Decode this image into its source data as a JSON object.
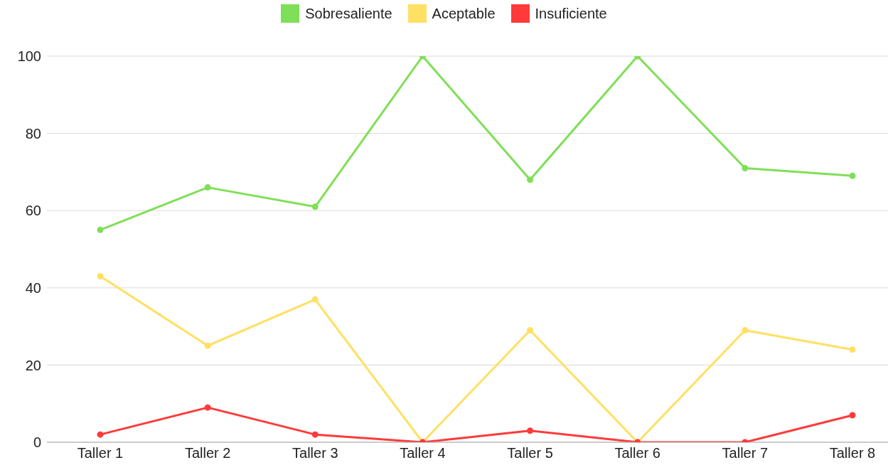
{
  "chart_data": {
    "type": "line",
    "categories": [
      "Taller 1",
      "Taller 2",
      "Taller 3",
      "Taller 4",
      "Taller 5",
      "Taller 6",
      "Taller 7",
      "Taller 8"
    ],
    "series": [
      {
        "name": "Sobresaliente",
        "color": "#80df58",
        "values": [
          55,
          66,
          61,
          100,
          68,
          100,
          71,
          69
        ]
      },
      {
        "name": "Aceptable",
        "color": "#ffe063",
        "values": [
          43,
          25,
          37,
          0,
          29,
          0,
          29,
          24
        ]
      },
      {
        "name": "Insuficiente",
        "color": "#ff3a3a",
        "values": [
          2,
          9,
          2,
          0,
          3,
          0,
          0,
          7
        ]
      }
    ],
    "ylim": [
      0,
      100
    ],
    "yticks": [
      0,
      20,
      40,
      60,
      80,
      100
    ],
    "grid": "y",
    "legend": "top",
    "marker": "circle",
    "line_style": "solid"
  }
}
